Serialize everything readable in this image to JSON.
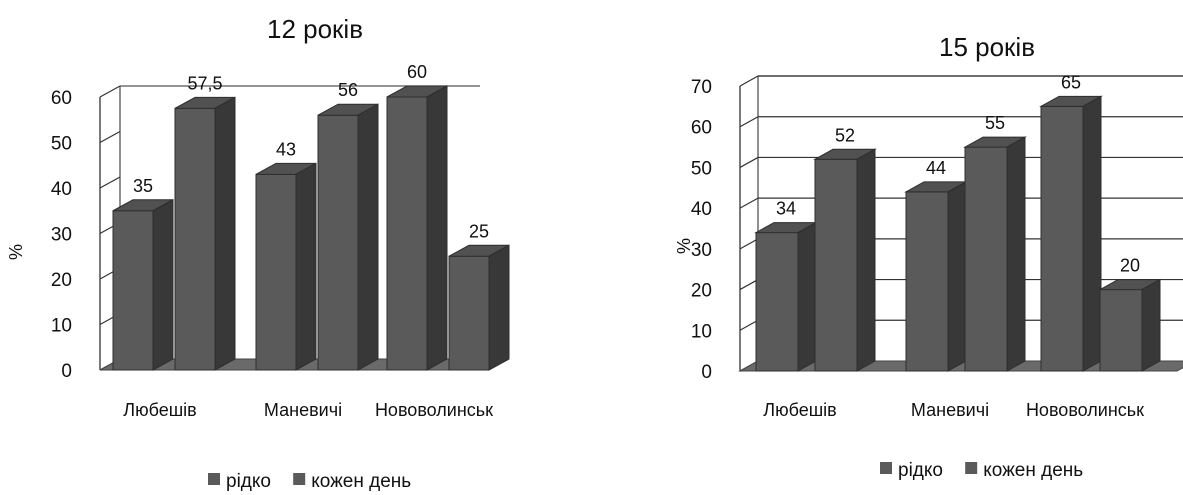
{
  "chart_data": [
    {
      "type": "bar",
      "title": "12 років",
      "ylabel": "%",
      "xlabel": "",
      "categories": [
        "Любешів",
        "Маневичі",
        "Нововолинськ"
      ],
      "series": [
        {
          "name": "рідко",
          "values": [
            35,
            43,
            60
          ],
          "labels": [
            "35",
            "43",
            "60"
          ]
        },
        {
          "name": "кожен день",
          "values": [
            57.5,
            56,
            25
          ],
          "labels": [
            "57,5",
            "56",
            "25"
          ]
        }
      ],
      "ylim": [
        0,
        60
      ],
      "yticks": [
        "0",
        "10",
        "20",
        "30",
        "40",
        "50",
        "60"
      ],
      "grid": false,
      "style": "3d",
      "legend_position": "bottom",
      "bar_color": "#5a5a5a"
    },
    {
      "type": "bar",
      "title": "15 років",
      "ylabel": "%",
      "xlabel": "",
      "categories": [
        "Любешів",
        "Маневичі",
        "Нововолинськ"
      ],
      "series": [
        {
          "name": "рідко",
          "values": [
            34,
            44,
            65
          ],
          "labels": [
            "34",
            "44",
            "65"
          ]
        },
        {
          "name": "кожен день",
          "values": [
            52,
            55,
            20
          ],
          "labels": [
            "52",
            "55",
            "20"
          ]
        }
      ],
      "ylim": [
        0,
        70
      ],
      "yticks": [
        "0",
        "10",
        "20",
        "30",
        "40",
        "50",
        "60",
        "70"
      ],
      "grid": true,
      "style": "3d",
      "legend_position": "bottom",
      "bar_color": "#5a5a5a"
    }
  ]
}
